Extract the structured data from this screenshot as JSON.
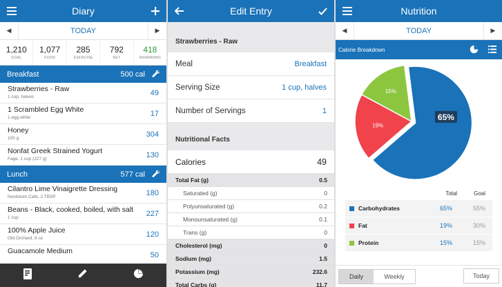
{
  "diary": {
    "title": "Diary",
    "day": "TODAY",
    "summary": [
      {
        "num": "1,210",
        "label": "GOAL",
        "color": "#222222"
      },
      {
        "num": "1,077",
        "label": "FOOD",
        "color": "#222222"
      },
      {
        "num": "285",
        "label": "EXERCISE",
        "color": "#222222"
      },
      {
        "num": "792",
        "label": "NET",
        "color": "#222222"
      },
      {
        "num": "418",
        "label": "REMAINING",
        "color": "#2a9d3a"
      }
    ],
    "breakfast": {
      "name": "Breakfast",
      "cal": "500 cal"
    },
    "breakfast_items": [
      {
        "name": "Strawberries - Raw",
        "sub": "1 cup, halves",
        "cal": "49"
      },
      {
        "name": "1 Scrambled Egg White",
        "sub": "1 egg white",
        "cal": "17"
      },
      {
        "name": "Honey",
        "sub": "100 g",
        "cal": "304"
      },
      {
        "name": "Nonfat Greek Strained Yogurt",
        "sub": "Fage, 1 cup (227 g)",
        "cal": "130"
      }
    ],
    "lunch": {
      "name": "Lunch",
      "cal": "577 cal"
    },
    "lunch_items": [
      {
        "name": "Cilantro Lime Vinaigrette Dressing",
        "sub": "Nordstom Cafe, 2 TBSP",
        "cal": "180"
      },
      {
        "name": "Beans - Black, cooked, boiled, with salt",
        "sub": "1 cup",
        "cal": "227"
      },
      {
        "name": "100% Apple Juice",
        "sub": "Old Orchard, 8 oz",
        "cal": "120"
      },
      {
        "name": "Guacamole Medium",
        "sub": "",
        "cal": "50"
      }
    ]
  },
  "edit": {
    "title": "Edit Entry",
    "food_name": "Strawberries - Raw",
    "meal_label": "Meal",
    "meal_value": "Breakfast",
    "serving_label": "Serving Size",
    "serving_value": "1 cup, halves",
    "servings_label": "Number of Servings",
    "servings_value": "1",
    "facts_head": "Nutritional Facts",
    "calories_label": "Calories",
    "calories_value": "49",
    "facts": [
      {
        "k": "Total Fat (g)",
        "v": "0.5",
        "kind": "bold"
      },
      {
        "k": "Saturated (g)",
        "v": "0",
        "kind": "sub"
      },
      {
        "k": "Polyunsaturated (g)",
        "v": "0.2",
        "kind": "sub"
      },
      {
        "k": "Monounsaturated (g)",
        "v": "0.1",
        "kind": "sub"
      },
      {
        "k": "Trans (g)",
        "v": "0",
        "kind": "sub"
      },
      {
        "k": "Cholesterol (mg)",
        "v": "0",
        "kind": "bold"
      },
      {
        "k": "Sodium (mg)",
        "v": "1.5",
        "kind": "bold"
      },
      {
        "k": "Potassium (mg)",
        "v": "232.6",
        "kind": "bold"
      },
      {
        "k": "Total Carbs (g)",
        "v": "11.7",
        "kind": "bold"
      }
    ]
  },
  "nutrition": {
    "title": "Nutrition",
    "day": "TODAY",
    "breakdown_label": "Calorie Breakdown",
    "total_head": "Total",
    "goal_head": "Goal",
    "daily": "Daily",
    "weekly": "Weekly",
    "today_btn": "Today"
  },
  "chart_data": {
    "type": "pie",
    "slices": [
      {
        "name": "Carbohydrates",
        "value": 65,
        "label": "65%",
        "goal": "55%",
        "color": "#1a72b8"
      },
      {
        "name": "Fat",
        "value": 19,
        "label": "19%",
        "goal": "30%",
        "color": "#f0434b"
      },
      {
        "name": "Protein",
        "value": 15,
        "label": "15%",
        "goal": "15%",
        "color": "#8cc63f"
      }
    ]
  }
}
